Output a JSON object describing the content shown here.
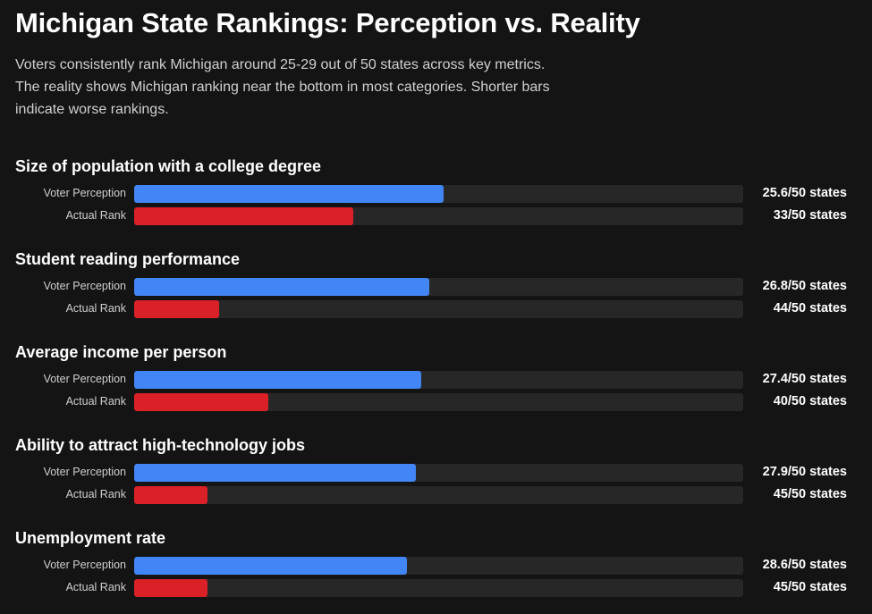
{
  "chart_data": {
    "type": "bar",
    "orientation": "horizontal",
    "title": "Michigan State Rankings: Perception vs. Reality",
    "subtitle_lines": [
      "Voters consistently rank Michigan around 25-29 out of 50 states across key metrics.",
      "The reality shows Michigan ranking near the bottom in most categories. Shorter bars",
      "indicate worse rankings."
    ],
    "total_states": 50,
    "value_suffix": "/50 states",
    "categories": [
      "Size of population with a college degree",
      "Student reading performance",
      "Average income per person",
      "Ability to attract high-technology jobs",
      "Unemployment rate"
    ],
    "series": [
      {
        "name": "Voter Perception",
        "color": "#4285f4",
        "values": [
          25.6,
          26.8,
          27.4,
          27.9,
          28.6
        ]
      },
      {
        "name": "Actual Rank",
        "color": "#db2128",
        "values": [
          33,
          44,
          40,
          45,
          45
        ]
      }
    ],
    "grid": false,
    "legend": "none"
  }
}
